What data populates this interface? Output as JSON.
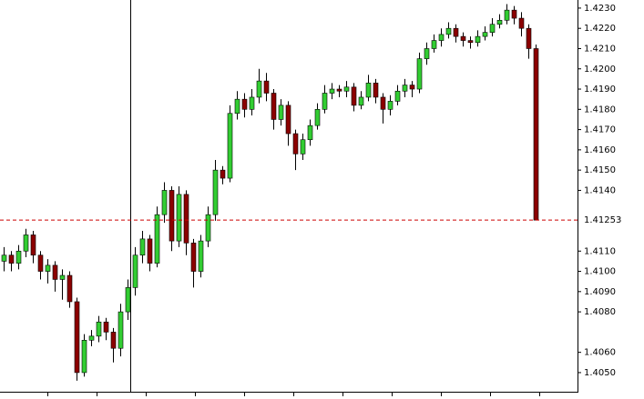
{
  "chart_data": {
    "type": "candlestick",
    "bull_color": "#32cd32",
    "bear_color": "#8b0000",
    "current_price": 1.41253,
    "current_price_color": "#cc0000",
    "ylim": [
      1.4041,
      1.4234
    ],
    "yticks": [
      {
        "value": 1.423,
        "label": "1.4230"
      },
      {
        "value": 1.422,
        "label": "1.4220"
      },
      {
        "value": 1.421,
        "label": "1.4210"
      },
      {
        "value": 1.42,
        "label": "1.4200"
      },
      {
        "value": 1.419,
        "label": "1.4190"
      },
      {
        "value": 1.418,
        "label": "1.4180"
      },
      {
        "value": 1.417,
        "label": "1.4170"
      },
      {
        "value": 1.416,
        "label": "1.4160"
      },
      {
        "value": 1.415,
        "label": "1.4150"
      },
      {
        "value": 1.414,
        "label": "1.4140"
      },
      {
        "value": 1.411,
        "label": "1.4110"
      },
      {
        "value": 1.41,
        "label": "1.4100"
      },
      {
        "value": 1.409,
        "label": "1.4090"
      },
      {
        "value": 1.408,
        "label": "1.4080"
      },
      {
        "value": 1.406,
        "label": "1.4060"
      },
      {
        "value": 1.405,
        "label": "1.4050"
      }
    ],
    "candles": [
      [
        1.4105,
        1.4112,
        1.41,
        1.4108
      ],
      [
        1.4108,
        1.411,
        1.41,
        1.4104
      ],
      [
        1.4104,
        1.4113,
        1.4101,
        1.411
      ],
      [
        1.411,
        1.4121,
        1.4107,
        1.4118
      ],
      [
        1.4118,
        1.412,
        1.4104,
        1.4108
      ],
      [
        1.4108,
        1.411,
        1.4096,
        1.41
      ],
      [
        1.41,
        1.4106,
        1.4094,
        1.4103
      ],
      [
        1.4103,
        1.4105,
        1.409,
        1.4096
      ],
      [
        1.4096,
        1.4101,
        1.4086,
        1.4098
      ],
      [
        1.4098,
        1.41,
        1.4082,
        1.4085
      ],
      [
        1.4085,
        1.4087,
        1.4046,
        1.405
      ],
      [
        1.405,
        1.4069,
        1.4048,
        1.4066
      ],
      [
        1.4066,
        1.4071,
        1.4063,
        1.4068
      ],
      [
        1.4068,
        1.4078,
        1.4065,
        1.4075
      ],
      [
        1.4075,
        1.4077,
        1.4066,
        1.407
      ],
      [
        1.407,
        1.4072,
        1.4055,
        1.4062
      ],
      [
        1.4062,
        1.4084,
        1.4058,
        1.408
      ],
      [
        1.408,
        1.4096,
        1.4076,
        1.4092
      ],
      [
        1.4092,
        1.4112,
        1.4088,
        1.4108
      ],
      [
        1.4108,
        1.412,
        1.4104,
        1.4116
      ],
      [
        1.4116,
        1.4118,
        1.41,
        1.4104
      ],
      [
        1.4104,
        1.4132,
        1.4102,
        1.4128
      ],
      [
        1.4128,
        1.4144,
        1.4124,
        1.414
      ],
      [
        1.414,
        1.4142,
        1.411,
        1.4115
      ],
      [
        1.4115,
        1.4142,
        1.4112,
        1.4138
      ],
      [
        1.4138,
        1.414,
        1.4108,
        1.4114
      ],
      [
        1.4114,
        1.4116,
        1.4092,
        1.41
      ],
      [
        1.41,
        1.4118,
        1.4097,
        1.4115
      ],
      [
        1.4115,
        1.4132,
        1.4112,
        1.4128
      ],
      [
        1.4128,
        1.4155,
        1.4125,
        1.415
      ],
      [
        1.415,
        1.4152,
        1.4143,
        1.4146
      ],
      [
        1.4146,
        1.4182,
        1.4144,
        1.4178
      ],
      [
        1.4178,
        1.4189,
        1.4175,
        1.4185
      ],
      [
        1.4185,
        1.4188,
        1.4176,
        1.418
      ],
      [
        1.418,
        1.419,
        1.4177,
        1.4186
      ],
      [
        1.4186,
        1.42,
        1.4183,
        1.4194
      ],
      [
        1.4194,
        1.4198,
        1.4184,
        1.4188
      ],
      [
        1.4188,
        1.419,
        1.417,
        1.4175
      ],
      [
        1.4175,
        1.4185,
        1.4172,
        1.4182
      ],
      [
        1.4182,
        1.4184,
        1.4162,
        1.4168
      ],
      [
        1.4168,
        1.417,
        1.415,
        1.4158
      ],
      [
        1.4158,
        1.4168,
        1.4155,
        1.4165
      ],
      [
        1.4165,
        1.4175,
        1.4162,
        1.4172
      ],
      [
        1.4172,
        1.4183,
        1.417,
        1.418
      ],
      [
        1.418,
        1.4192,
        1.4178,
        1.4188
      ],
      [
        1.4188,
        1.4193,
        1.4185,
        1.419
      ],
      [
        1.419,
        1.4192,
        1.4186,
        1.4189
      ],
      [
        1.4189,
        1.4194,
        1.4186,
        1.4191
      ],
      [
        1.4191,
        1.4193,
        1.4179,
        1.4182
      ],
      [
        1.4182,
        1.4189,
        1.418,
        1.4186
      ],
      [
        1.4186,
        1.4197,
        1.4184,
        1.4193
      ],
      [
        1.4193,
        1.4195,
        1.4183,
        1.4186
      ],
      [
        1.4186,
        1.4188,
        1.4173,
        1.418
      ],
      [
        1.418,
        1.4187,
        1.4177,
        1.4184
      ],
      [
        1.4184,
        1.4192,
        1.4182,
        1.4189
      ],
      [
        1.4189,
        1.4195,
        1.4186,
        1.4192
      ],
      [
        1.4192,
        1.4194,
        1.4186,
        1.419
      ],
      [
        1.419,
        1.4208,
        1.4188,
        1.4205
      ],
      [
        1.4205,
        1.4213,
        1.4202,
        1.421
      ],
      [
        1.421,
        1.4217,
        1.4208,
        1.4214
      ],
      [
        1.4214,
        1.422,
        1.4211,
        1.4217
      ],
      [
        1.4217,
        1.4223,
        1.4215,
        1.422
      ],
      [
        1.422,
        1.4222,
        1.4213,
        1.4216
      ],
      [
        1.4216,
        1.4218,
        1.4211,
        1.4214
      ],
      [
        1.4214,
        1.4216,
        1.421,
        1.4213
      ],
      [
        1.4213,
        1.4219,
        1.4211,
        1.4216
      ],
      [
        1.4216,
        1.4221,
        1.4214,
        1.4218
      ],
      [
        1.4218,
        1.4225,
        1.4216,
        1.4222
      ],
      [
        1.4222,
        1.4227,
        1.422,
        1.4224
      ],
      [
        1.4224,
        1.4232,
        1.4222,
        1.4229
      ],
      [
        1.4229,
        1.4231,
        1.4222,
        1.4225
      ],
      [
        1.4225,
        1.4228,
        1.4216,
        1.422
      ],
      [
        1.422,
        1.4222,
        1.4205,
        1.421
      ],
      [
        1.421,
        1.4212,
        1.41253,
        1.41253
      ]
    ]
  }
}
